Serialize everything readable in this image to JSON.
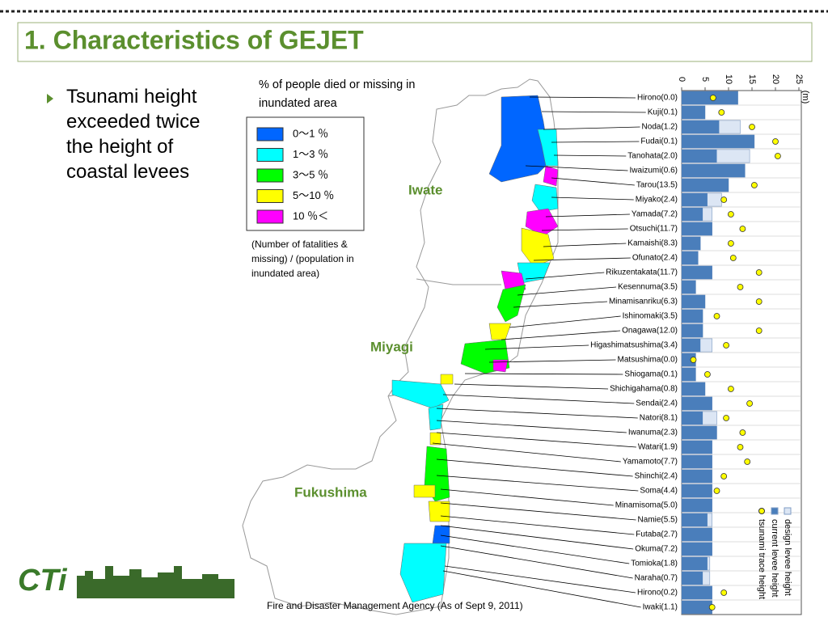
{
  "title": "1. Characteristics of GEJET",
  "bullet": "Tsunami height exceeded twice the height of coastal levees",
  "map_caption": "% of people died or missing in inundated area",
  "legend": [
    {
      "label": "0～1 ％",
      "color": "#0066ff"
    },
    {
      "label": "1～3 ％",
      "color": "#00ffff"
    },
    {
      "label": "3～5 ％",
      "color": "#00ff00"
    },
    {
      "label": "5～10 ％",
      "color": "#ffff00"
    },
    {
      "label": "10 ％＜",
      "color": "#ff00ff"
    }
  ],
  "note": "(Number of fatalities & missing) / (population in inundated area)",
  "regions": [
    "Iwate",
    "Miyagi",
    "Fukushima"
  ],
  "source": "Fire and Disaster Management Agency (As of Sept 9, 2011)",
  "logo": "CTi",
  "chart_data": {
    "type": "bar",
    "orientation": "horizontal",
    "x_label": "(m)",
    "xlim": [
      0,
      25
    ],
    "xticks": [
      0,
      5,
      10,
      15,
      20,
      25
    ],
    "categories": [
      "Hirono(0.0)",
      "Kuji(0.1)",
      "Noda(1.2)",
      "Fudai(0.1)",
      "Tanohata(2.0)",
      "Iwaizumi(0.6)",
      "Tarou(13.5)",
      "Miyako(2.4)",
      "Yamada(7.2)",
      "Otsuchi(11.7)",
      "Kamaishi(8.3)",
      "Ofunato(2.4)",
      "Rikuzentakata(11.7)",
      "Kesennuma(3.5)",
      "Minamisanriku(6.3)",
      "Ishinomaki(3.5)",
      "Onagawa(12.0)",
      "Higashimatsushima(3.4)",
      "Matsushima(0.0)",
      "Shiogama(0.1)",
      "Shichigahama(0.8)",
      "Sendai(2.4)",
      "Natori(8.1)",
      "Iwanuma(2.3)",
      "Watari(1.9)",
      "Yamamoto(7.7)",
      "Shinchi(2.4)",
      "Soma(4.4)",
      "Minamisoma(5.0)",
      "Namie(5.5)",
      "Futaba(2.7)",
      "Okuma(7.2)",
      "Tomioka(1.8)",
      "Naraha(0.7)",
      "Hirono(0.2)",
      "Iwaki(1.1)"
    ],
    "series": [
      {
        "name": "design levee height",
        "color": "#dce6f4",
        "marker": "bar",
        "values": [
          12,
          5,
          12.5,
          15.5,
          14.5,
          13.5,
          10,
          8.5,
          6.5,
          6.5,
          4,
          3.5,
          6.5,
          3,
          5,
          4.5,
          4.5,
          6.5,
          3,
          3,
          5,
          6.5,
          7.5,
          7.5,
          6.5,
          6.5,
          6.5,
          6.5,
          6.5,
          6.5,
          6.5,
          6.5,
          6,
          6,
          6.5,
          6.5
        ]
      },
      {
        "name": "current levee height",
        "color": "#4a7ebb",
        "marker": "bar",
        "values": [
          12,
          5,
          8,
          15.5,
          7.5,
          13.5,
          10,
          5.5,
          4.5,
          6.5,
          4,
          3.5,
          6.5,
          3,
          5,
          4.5,
          4.5,
          4,
          3,
          3,
          5,
          6.5,
          4.5,
          7.5,
          6.5,
          6.5,
          6.5,
          6.5,
          6.5,
          5.5,
          6.5,
          6.5,
          5.5,
          4.5,
          6.5,
          6.5
        ]
      },
      {
        "name": "tsunami trace height",
        "color": "#ffff00",
        "marker": "circle",
        "values": [
          6.7,
          8.5,
          15,
          20,
          20.5,
          null,
          15.5,
          9,
          10.5,
          13,
          10.5,
          11,
          16.5,
          12.5,
          16.5,
          7.5,
          16.5,
          9.5,
          2.5,
          5.5,
          10.5,
          14.5,
          9.5,
          13,
          12.5,
          14,
          9,
          7.5,
          null,
          null,
          null,
          null,
          null,
          null,
          9,
          6.5
        ]
      }
    ]
  }
}
